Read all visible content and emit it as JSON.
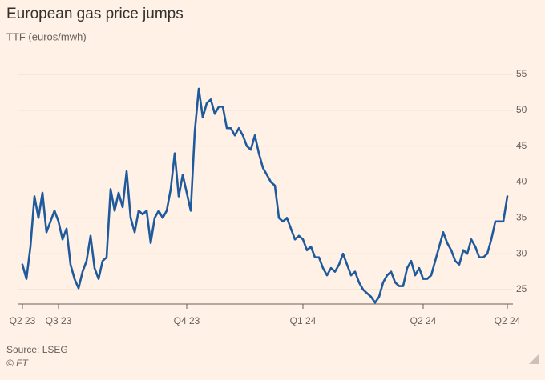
{
  "chart_data": {
    "type": "line",
    "title": "European gas price jumps",
    "subtitle": "TTF (euros/mwh)",
    "source": "Source: LSEG",
    "credit": "© FT",
    "categories": [
      "Q2 23",
      null,
      null,
      null,
      null,
      null,
      null,
      null,
      null,
      "Q3 23",
      null,
      null,
      null,
      null,
      null,
      null,
      null,
      null,
      null,
      null,
      null,
      null,
      null,
      null,
      null,
      null,
      null,
      null,
      null,
      null,
      null,
      null,
      null,
      null,
      null,
      null,
      null,
      null,
      null,
      null,
      null,
      "Q4 23",
      null,
      null,
      null,
      null,
      null,
      null,
      null,
      null,
      null,
      null,
      null,
      null,
      null,
      null,
      null,
      null,
      null,
      null,
      null,
      null,
      null,
      null,
      null,
      null,
      null,
      null,
      null,
      null,
      "Q1 24",
      null,
      null,
      null,
      null,
      null,
      null,
      null,
      null,
      null,
      null,
      null,
      null,
      null,
      null,
      null,
      null,
      null,
      null,
      null,
      null,
      null,
      null,
      null,
      null,
      null,
      null,
      null,
      null,
      null,
      "Q2 24",
      null,
      null,
      null,
      null,
      null,
      null,
      null,
      null,
      null,
      null,
      null,
      null,
      null,
      null,
      null,
      null,
      null,
      null,
      null,
      null,
      "Q2 24"
    ],
    "values": [
      28.5,
      26.5,
      31,
      38,
      35,
      38.5,
      33,
      34.5,
      36,
      34.5,
      32,
      33.5,
      28.5,
      26.5,
      25.2,
      27.5,
      29,
      32.5,
      28,
      26.5,
      29,
      29.5,
      39,
      36,
      38.5,
      36.5,
      41.5,
      35,
      33,
      36,
      35.5,
      36,
      31.5,
      35,
      36,
      35,
      36,
      39,
      44,
      38,
      41,
      38.5,
      36,
      47,
      53,
      49,
      51,
      51.5,
      49.5,
      50.5,
      50.5,
      47.5,
      47.5,
      46.5,
      47.5,
      46.5,
      45,
      44.5,
      46.5,
      44,
      42,
      41,
      40,
      39.5,
      35,
      34.5,
      35,
      33.5,
      32,
      32.5,
      32,
      30.5,
      31,
      29.5,
      29.5,
      28,
      27,
      28,
      27.5,
      28.5,
      30,
      28.5,
      27,
      27.5,
      26,
      25,
      24.5,
      24,
      23.2,
      24,
      26,
      27,
      27.5,
      26,
      25.5,
      25.5,
      28,
      29,
      27,
      28,
      26.5,
      26.5,
      27,
      29,
      31,
      33,
      31.5,
      30.5,
      29,
      28.5,
      30.5,
      30,
      32,
      31,
      29.5,
      29.5,
      30,
      32,
      34.5,
      34.5,
      34.5,
      38
    ],
    "color": "#1f5a9c",
    "ylim": [
      23,
      56
    ],
    "yticks": [
      25,
      30,
      35,
      40,
      45,
      50,
      55
    ],
    "grid": true
  }
}
